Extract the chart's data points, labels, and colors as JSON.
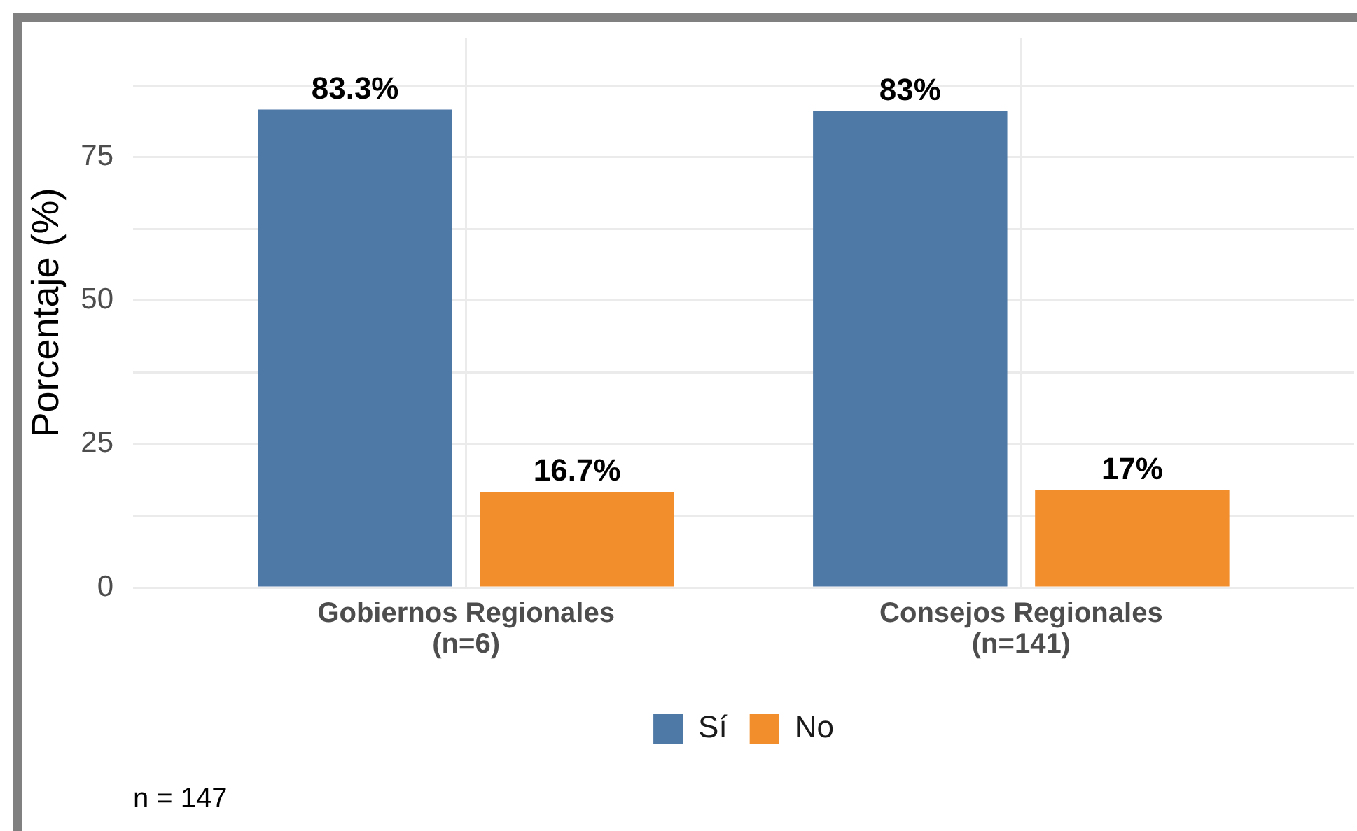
{
  "chart_data": {
    "type": "bar",
    "categories": [
      "Gobiernos Regionales\n(n=6)",
      "Consejos Regionales\n(n=141)"
    ],
    "series": [
      {
        "name": "Sí",
        "color": "#4e79a7",
        "values": [
          83.3,
          83
        ],
        "value_labels": [
          "83.3%",
          "83%"
        ]
      },
      {
        "name": "No",
        "color": "#f28e2b",
        "values": [
          16.7,
          17
        ],
        "value_labels": [
          "16.7%",
          "17%"
        ]
      }
    ],
    "ylabel": "Porcentaje (%)",
    "ylim": [
      0,
      95.8
    ],
    "yticks": [
      0,
      {
        "value": 12.5,
        "label": null
      },
      25,
      {
        "value": 37.5,
        "label": null
      },
      50,
      {
        "value": 62.5,
        "label": null
      },
      75,
      {
        "value": 87.5,
        "label": null
      }
    ],
    "grid": true,
    "legend": "bottom",
    "annotations": [
      "n = 147"
    ]
  }
}
